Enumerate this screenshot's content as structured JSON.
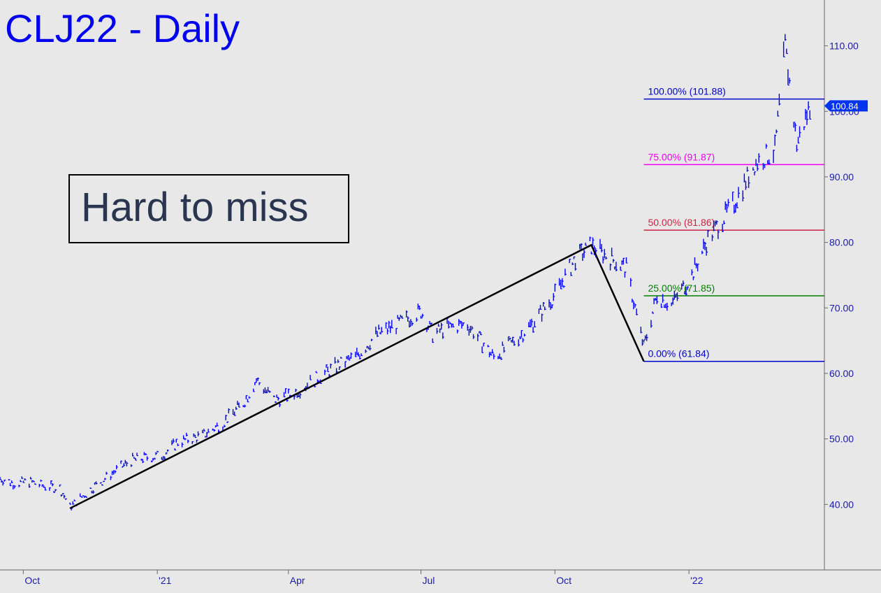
{
  "colors": {
    "background": "#e8e8e8",
    "price": "#0000ee",
    "fib_0": "#0000cc",
    "fib_25": "#008000",
    "fib_50": "#cc2244",
    "fib_75": "#ee00ee",
    "fib_100": "#0000cc",
    "trendline": "#000000",
    "axis": "#666666"
  },
  "chart_data": {
    "type": "line",
    "title": "CLJ22 - Daily",
    "annotation": "Hard to miss",
    "ylim": [
      30,
      117
    ],
    "y_ticks": [
      {
        "label": "40.00",
        "value": 40
      },
      {
        "label": "50.00",
        "value": 50
      },
      {
        "label": "60.00",
        "value": 60
      },
      {
        "label": "70.00",
        "value": 70
      },
      {
        "label": "80.00",
        "value": 80
      },
      {
        "label": "90.00",
        "value": 90
      },
      {
        "label": "100.00",
        "value": 100
      },
      {
        "label": "110.00",
        "value": 110
      }
    ],
    "x_ticks": [
      {
        "label": "Oct",
        "date": "2020-10-01"
      },
      {
        "label": "'21",
        "date": "2021-01-01"
      },
      {
        "label": "Apr",
        "date": "2021-04-01"
      },
      {
        "label": "Jul",
        "date": "2021-07-01"
      },
      {
        "label": "Oct",
        "date": "2021-10-01"
      },
      {
        "label": "'22",
        "date": "2022-01-01"
      }
    ],
    "x_range": [
      "2020-09-15",
      "2022-04-04"
    ],
    "last_price": {
      "label": "100.84",
      "value": 100.84
    },
    "fib_levels": [
      {
        "label": "100.00% (101.88)",
        "value": 101.88,
        "color_key": "fib_100"
      },
      {
        "label": "75.00% (91.87)",
        "value": 91.87,
        "color_key": "fib_75"
      },
      {
        "label": "50.00% (81.86)",
        "value": 81.86,
        "color_key": "fib_50"
      },
      {
        "label": "25.00% (71.85)",
        "value": 71.85,
        "color_key": "fib_25"
      },
      {
        "label": "0.00% (61.84)",
        "value": 61.84,
        "color_key": "fib_0"
      }
    ],
    "fib_start_date": "2021-12-01",
    "trendlines": [
      {
        "points": [
          [
            "2020-11-02",
            39.4
          ],
          [
            "2021-10-26",
            79.6
          ],
          [
            "2021-12-01",
            61.84
          ]
        ]
      }
    ],
    "series": [
      {
        "x": [
          "2020-09-15",
          "2020-09-25",
          "2020-10-05",
          "2020-10-15",
          "2020-10-26",
          "2020-11-02",
          "2020-11-16",
          "2020-12-01",
          "2020-12-15",
          "2021-01-04",
          "2021-01-15",
          "2021-02-01",
          "2021-02-15",
          "2021-03-01",
          "2021-03-10",
          "2021-03-22",
          "2021-04-01",
          "2021-04-15",
          "2021-05-03",
          "2021-05-17",
          "2021-06-01",
          "2021-06-15",
          "2021-07-01",
          "2021-07-09",
          "2021-07-19",
          "2021-08-02",
          "2021-08-20",
          "2021-09-01",
          "2021-09-15",
          "2021-10-01",
          "2021-10-15",
          "2021-10-26",
          "2021-11-05",
          "2021-11-19",
          "2021-12-01",
          "2021-12-10",
          "2021-12-20",
          "2022-01-03",
          "2022-01-14",
          "2022-02-01",
          "2022-02-15",
          "2022-03-01",
          "2022-03-08",
          "2022-03-16",
          "2022-03-25"
        ],
        "values": [
          44.0,
          43.2,
          43.5,
          42.8,
          42.5,
          39.6,
          42.3,
          44.8,
          46.8,
          47.5,
          49.5,
          50.5,
          52.5,
          55.5,
          59.0,
          56.0,
          56.5,
          58.5,
          61.0,
          62.5,
          66.0,
          67.5,
          69.5,
          66.0,
          67.0,
          67.5,
          62.5,
          64.5,
          67.5,
          72.0,
          77.5,
          79.5,
          78.0,
          76.0,
          64.0,
          72.0,
          70.5,
          75.0,
          80.5,
          86.0,
          92.0,
          94.0,
          110.0,
          95.0,
          100.84
        ]
      }
    ]
  }
}
